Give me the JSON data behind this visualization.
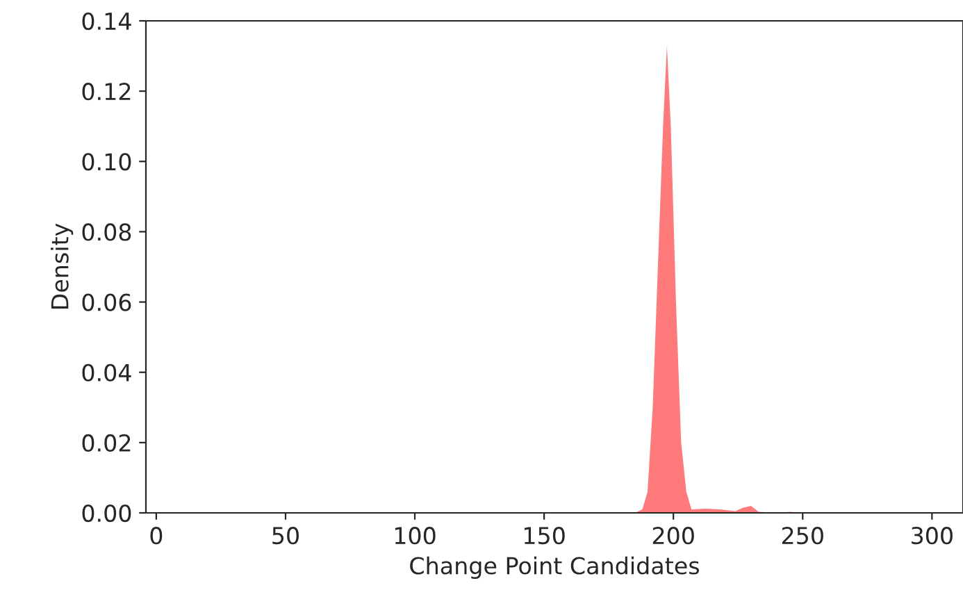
{
  "chart_data": {
    "type": "area",
    "xlabel": "Change Point Candidates",
    "ylabel": "Density",
    "series": [
      {
        "color": "#ff7b7b",
        "x": [
          185,
          188,
          190,
          192,
          194,
          196,
          197.5,
          199,
          201,
          203,
          205,
          207,
          212,
          218,
          224,
          227,
          230,
          233,
          240,
          245,
          250
        ],
        "values": [
          0,
          0.001,
          0.006,
          0.03,
          0.07,
          0.11,
          0.133,
          0.11,
          0.06,
          0.02,
          0.006,
          0.001,
          0.0012,
          0.001,
          0.0005,
          0.0015,
          0.002,
          0.0003,
          0,
          0.0003,
          0
        ]
      }
    ],
    "xlim": [
      -4,
      312
    ],
    "ylim": [
      0,
      0.14
    ],
    "xticks": [
      0,
      50,
      100,
      150,
      200,
      250,
      300
    ],
    "yticks": [
      {
        "value": 0,
        "label": "0.00"
      },
      {
        "value": 0.02,
        "label": "0.02"
      },
      {
        "value": 0.04,
        "label": "0.04"
      },
      {
        "value": 0.06,
        "label": "0.06"
      },
      {
        "value": 0.08,
        "label": "0.08"
      },
      {
        "value": 0.1,
        "label": "0.10"
      },
      {
        "value": 0.12,
        "label": "0.12"
      },
      {
        "value": 0.14,
        "label": "0.14"
      }
    ],
    "grid": false,
    "legend": false
  }
}
